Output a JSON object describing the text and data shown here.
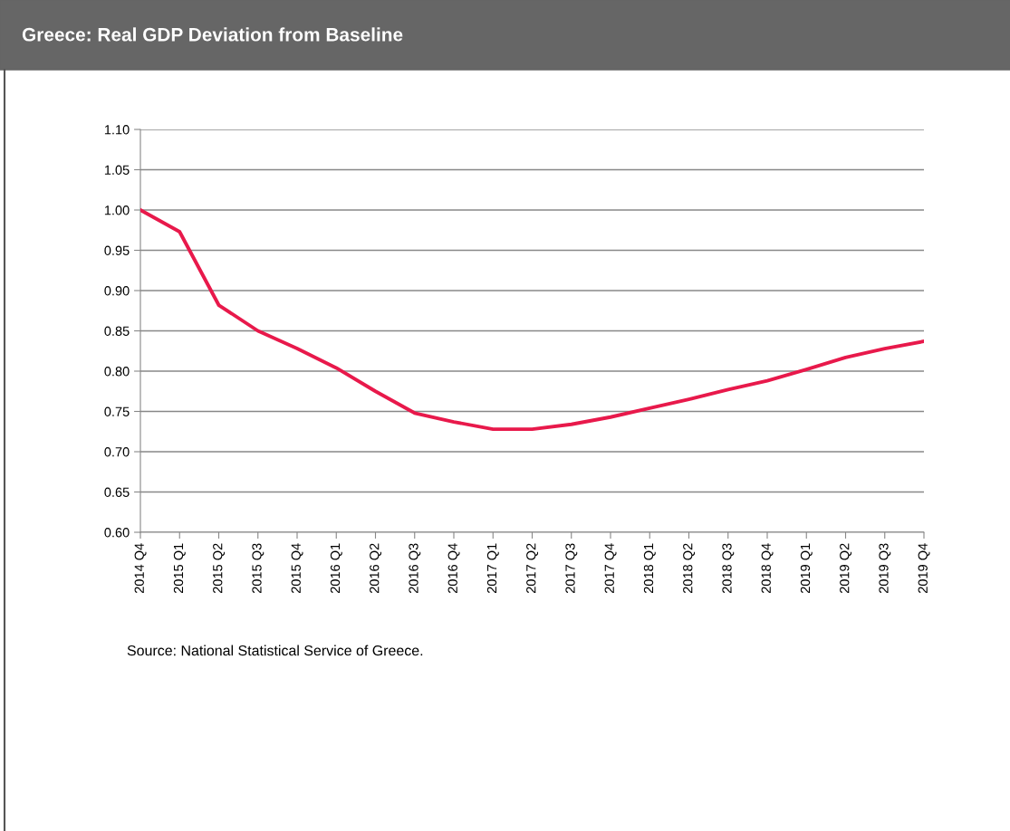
{
  "chart_data": {
    "type": "line",
    "title": "Greece: Real GDP Deviation from Baseline",
    "categories": [
      "2014 Q4",
      "2015 Q1",
      "2015 Q2",
      "2015 Q3",
      "2015 Q4",
      "2016 Q1",
      "2016 Q2",
      "2016 Q3",
      "2016 Q4",
      "2017 Q1",
      "2017 Q2",
      "2017 Q3",
      "2017 Q4",
      "2018 Q1",
      "2018 Q2",
      "2018 Q3",
      "2018 Q4",
      "2019 Q1",
      "2019 Q2",
      "2019 Q3",
      "2019 Q4"
    ],
    "series": [
      {
        "color": "#e8194b",
        "values": [
          1.0,
          0.973,
          0.882,
          0.85,
          0.828,
          0.804,
          0.775,
          0.748,
          0.737,
          0.728,
          0.728,
          0.734,
          0.743,
          0.754,
          0.765,
          0.777,
          0.788,
          0.802,
          0.817,
          0.828,
          0.837
        ]
      }
    ],
    "ylim": [
      0.6,
      1.1
    ],
    "yticks": [
      {
        "value": 0.6,
        "label": "0.60"
      },
      {
        "value": 0.65,
        "label": "0.65"
      },
      {
        "value": 0.7,
        "label": "0.70"
      },
      {
        "value": 0.75,
        "label": "0.75"
      },
      {
        "value": 0.8,
        "label": "0.80"
      },
      {
        "value": 0.85,
        "label": "0.85"
      },
      {
        "value": 0.9,
        "label": "0.90"
      },
      {
        "value": 0.95,
        "label": "0.95"
      },
      {
        "value": 1.0,
        "label": "1.00"
      },
      {
        "value": 1.05,
        "label": "1.05"
      },
      {
        "value": 1.1,
        "label": "1.10"
      }
    ],
    "grid": "y",
    "marker": "none",
    "line_style": "solid",
    "annotations": [
      "Source: National Statistical Service of Greece."
    ]
  }
}
